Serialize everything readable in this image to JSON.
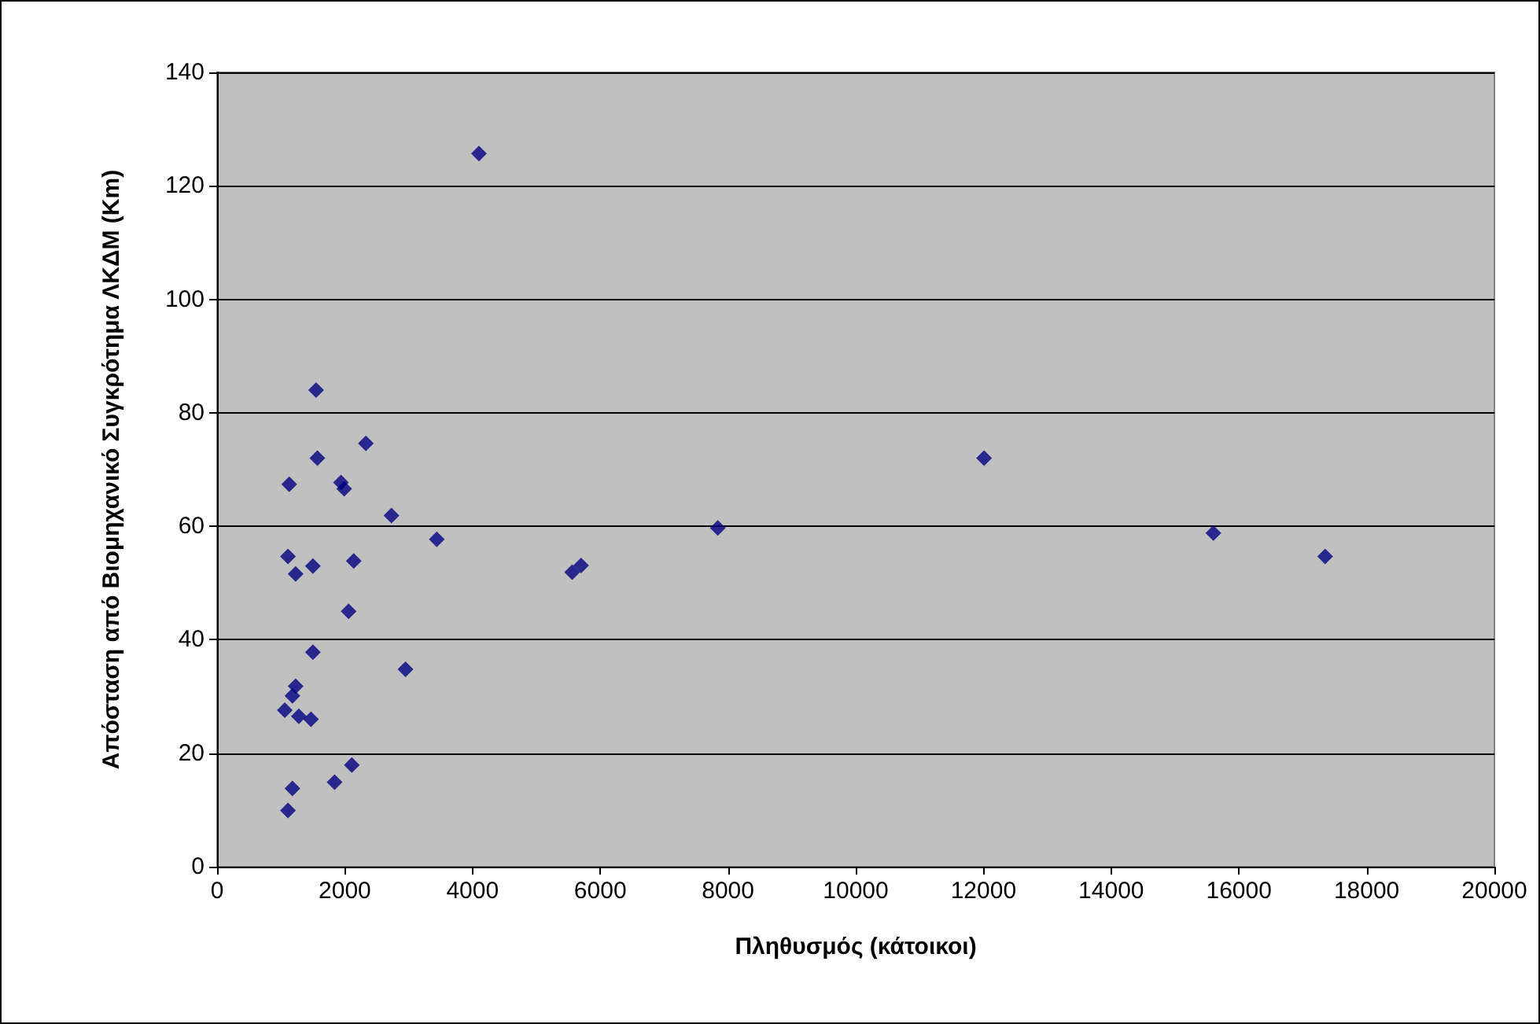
{
  "chart_data": {
    "type": "scatter",
    "xlabel": "Πληθυσμός (κάτοικοι)",
    "ylabel": "Απόσταση από Βιομηχανικό Συγκρότημα ΛΚΔΜ (Km)",
    "x": [
      4100,
      1550,
      2330,
      1570,
      1130,
      1940,
      1990,
      2730,
      3440,
      1110,
      1230,
      1500,
      2140,
      2060,
      7840,
      12010,
      15600,
      17350,
      5560,
      5700,
      1500,
      2950,
      1230,
      1180,
      1060,
      1280,
      1470,
      2110,
      1840,
      1180,
      1110
    ],
    "series": [
      {
        "color": "#000080",
        "values": [
          125.7,
          84,
          74.6,
          72,
          67.4,
          67.7,
          66.6,
          61.9,
          57.7,
          54.7,
          51.6,
          53,
          53.9,
          45,
          59.7,
          72,
          58.8,
          54.7,
          51.9,
          53.1,
          37.8,
          34.8,
          31.8,
          30.1,
          27.6,
          26.5,
          26,
          17.9,
          14.9,
          13.8,
          9.9
        ]
      }
    ],
    "xlim": [
      0,
      20000
    ],
    "xticks": [
      0,
      2000,
      4000,
      6000,
      8000,
      10000,
      12000,
      14000,
      16000,
      18000,
      20000
    ],
    "ylim": [
      0,
      140
    ],
    "yticks": [
      0,
      20,
      40,
      60,
      80,
      100,
      120,
      140
    ],
    "grid": "y",
    "marker": "diamond"
  }
}
